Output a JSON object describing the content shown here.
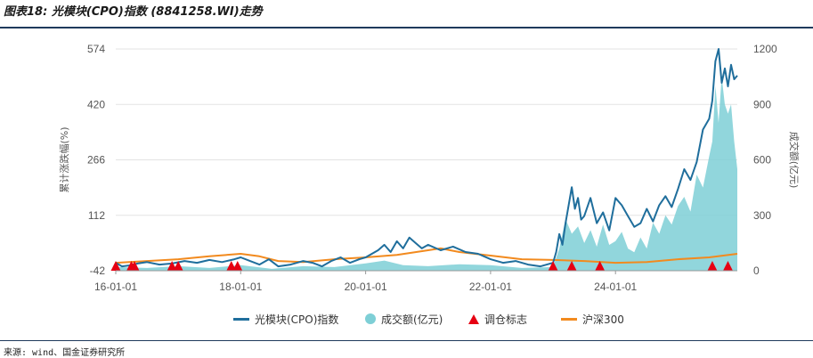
{
  "title": "图表18: 光模块(CPO)指数 (8841258.WI)走势",
  "source": "来源: wind、国金证券研究所",
  "chart_data": {
    "type": "line",
    "y_left": {
      "label": "累计涨跌幅(%)",
      "ticks": [
        "574",
        "420",
        "266",
        "112",
        "-42"
      ],
      "range": [
        -42,
        574
      ]
    },
    "y_right": {
      "label": "成交额(亿元)",
      "ticks": [
        "1200",
        "900",
        "600",
        "300",
        "0"
      ],
      "range": [
        0,
        1200
      ]
    },
    "x_ticks": [
      "16-01-01",
      "18-01-01",
      "20-01-01",
      "22-01-01",
      "24-01-01"
    ],
    "x_range": [
      2016.0,
      2025.95
    ],
    "grid": true,
    "legend_position": "bottom",
    "colors": {
      "index": "#1f6e9c",
      "turnover": "#7ecfd6",
      "marker": "#e60012",
      "hs300": "#f28a1e"
    },
    "series": [
      {
        "name": "光模块(CPO)指数",
        "kind": "line",
        "axis": "left",
        "x": [
          2016.0,
          2016.1,
          2016.2,
          2016.35,
          2016.5,
          2016.7,
          2016.9,
          2017.1,
          2017.3,
          2017.5,
          2017.7,
          2017.9,
          2018.0,
          2018.15,
          2018.3,
          2018.45,
          2018.6,
          2018.8,
          2019.0,
          2019.15,
          2019.3,
          2019.45,
          2019.6,
          2019.75,
          2019.9,
          2020.0,
          2020.1,
          2020.2,
          2020.3,
          2020.4,
          2020.5,
          2020.6,
          2020.7,
          2020.8,
          2020.9,
          2021.0,
          2021.2,
          2021.4,
          2021.6,
          2021.8,
          2022.0,
          2022.2,
          2022.4,
          2022.6,
          2022.8,
          2023.0,
          2023.05,
          2023.1,
          2023.15,
          2023.2,
          2023.3,
          2023.35,
          2023.4,
          2023.45,
          2023.5,
          2023.6,
          2023.7,
          2023.8,
          2023.9,
          2024.0,
          2024.1,
          2024.2,
          2024.3,
          2024.4,
          2024.5,
          2024.6,
          2024.7,
          2024.8,
          2024.9,
          2025.0,
          2025.1,
          2025.2,
          2025.3,
          2025.4,
          2025.5,
          2025.55,
          2025.6,
          2025.65,
          2025.7,
          2025.75,
          2025.8,
          2025.85,
          2025.9,
          2025.95
        ],
        "y": [
          -20,
          -30,
          -28,
          -22,
          -18,
          -25,
          -22,
          -15,
          -20,
          -12,
          -18,
          -10,
          -5,
          -15,
          -25,
          -10,
          -30,
          -25,
          -15,
          -20,
          -30,
          -15,
          -5,
          -20,
          -10,
          -5,
          5,
          15,
          30,
          10,
          40,
          20,
          50,
          35,
          20,
          30,
          15,
          25,
          10,
          5,
          -10,
          -20,
          -15,
          -25,
          -30,
          -20,
          10,
          60,
          30,
          90,
          190,
          130,
          160,
          100,
          110,
          160,
          90,
          120,
          70,
          160,
          140,
          110,
          80,
          90,
          130,
          95,
          140,
          165,
          135,
          185,
          240,
          210,
          260,
          350,
          380,
          430,
          540,
          574,
          480,
          520,
          470,
          530,
          490,
          500
        ]
      },
      {
        "name": "成交额(亿元)",
        "kind": "area",
        "axis": "right",
        "x": [
          2016.0,
          2016.5,
          2017.0,
          2017.5,
          2018.0,
          2018.5,
          2019.0,
          2019.5,
          2020.0,
          2020.3,
          2020.6,
          2021.0,
          2021.5,
          2022.0,
          2022.5,
          2023.0,
          2023.1,
          2023.2,
          2023.3,
          2023.4,
          2023.5,
          2023.6,
          2023.7,
          2023.8,
          2023.9,
          2024.0,
          2024.1,
          2024.2,
          2024.3,
          2024.4,
          2024.5,
          2024.6,
          2024.7,
          2024.8,
          2024.9,
          2025.0,
          2025.1,
          2025.2,
          2025.3,
          2025.4,
          2025.5,
          2025.55,
          2025.6,
          2025.65,
          2025.7,
          2025.75,
          2025.8,
          2025.85,
          2025.9,
          2025.95
        ],
        "y": [
          20,
          15,
          25,
          15,
          30,
          10,
          25,
          20,
          40,
          55,
          30,
          25,
          35,
          30,
          15,
          20,
          120,
          280,
          200,
          240,
          150,
          220,
          130,
          250,
          140,
          160,
          210,
          120,
          100,
          180,
          120,
          260,
          200,
          300,
          250,
          350,
          400,
          320,
          520,
          450,
          620,
          700,
          1000,
          800,
          1050,
          900,
          850,
          900,
          700,
          550
        ]
      },
      {
        "name": "沪深300",
        "kind": "line",
        "axis": "left",
        "x": [
          2016.0,
          2016.5,
          2017.0,
          2017.5,
          2018.0,
          2018.3,
          2018.6,
          2019.0,
          2019.5,
          2020.0,
          2020.5,
          2021.0,
          2021.2,
          2021.5,
          2022.0,
          2022.5,
          2023.0,
          2023.5,
          2024.0,
          2024.5,
          2025.0,
          2025.5,
          2025.95
        ],
        "y": [
          -20,
          -15,
          -10,
          -2,
          5,
          -2,
          -15,
          -18,
          -10,
          -5,
          2,
          15,
          20,
          10,
          0,
          -10,
          -12,
          -15,
          -20,
          -18,
          -10,
          -5,
          5
        ]
      },
      {
        "name": "调仓标志",
        "kind": "marker",
        "x": [
          2016.0,
          2016.25,
          2016.3,
          2016.9,
          2017.0,
          2017.85,
          2017.95,
          2023.0,
          2023.3,
          2023.75,
          2025.55,
          2025.8
        ]
      }
    ]
  }
}
